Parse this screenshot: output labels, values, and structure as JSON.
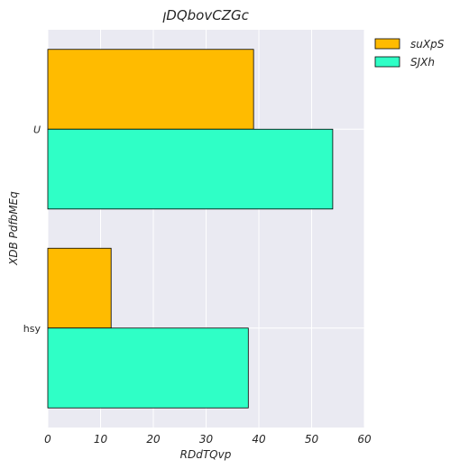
{
  "chart_data": {
    "type": "bar",
    "orientation": "horizontal",
    "title": "ꞁDQbovCZGc",
    "xlabel": "RDdTQvp",
    "ylabel": "XDB  PdfbMEq",
    "categories": [
      "U",
      "hsy"
    ],
    "category_styles": [
      "italic",
      "normal"
    ],
    "series": [
      {
        "name": "suXpS",
        "values": [
          39,
          12
        ],
        "color": "#FFBB00"
      },
      {
        "name": "SJXh",
        "values": [
          54,
          38
        ],
        "color": "#2FFFC6"
      }
    ],
    "xlim": [
      0,
      60
    ],
    "xticks": [
      0,
      10,
      20,
      30,
      40,
      50,
      60
    ],
    "grid": true,
    "legend": "outside-top-right",
    "background": "#EAEAF2"
  }
}
